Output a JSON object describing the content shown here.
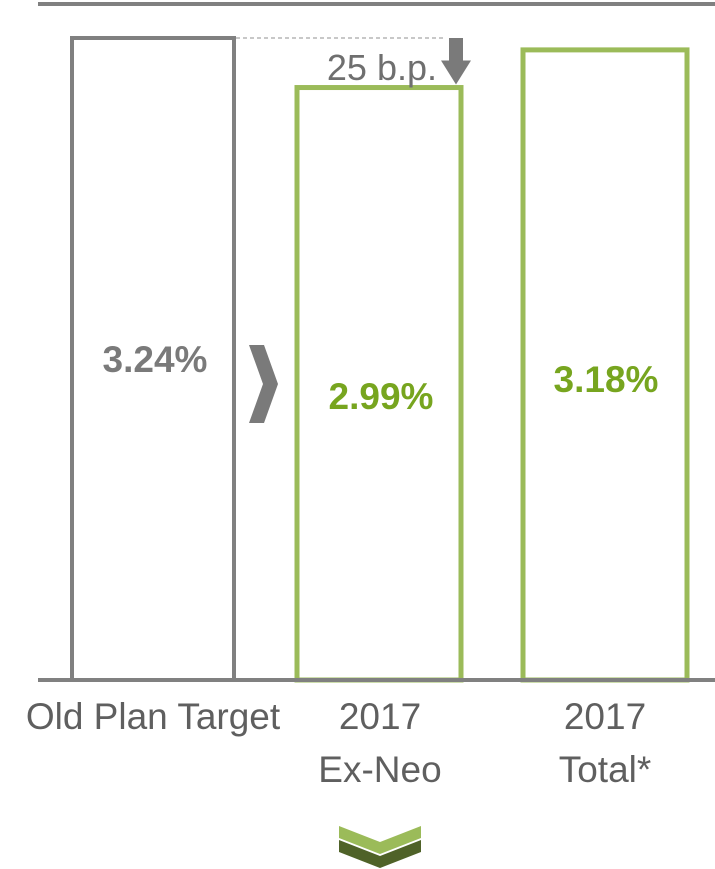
{
  "chart_data": {
    "type": "bar",
    "categories": [
      "Old Plan Target",
      "2017 Ex-Neo",
      "2017 Total*"
    ],
    "category_lines": [
      [
        "Old Plan Target"
      ],
      [
        "2017",
        "Ex-Neo"
      ],
      [
        "2017",
        "Total*"
      ]
    ],
    "values": [
      3.24,
      2.99,
      3.18
    ],
    "value_labels": [
      "3.24%",
      "2.99%",
      "3.18%"
    ],
    "annotation": {
      "text": "25 b.p.",
      "from_category": "Old Plan Target",
      "to_category": "2017 Ex-Neo",
      "difference": 0.25
    },
    "title": "",
    "xlabel": "",
    "ylabel": "",
    "ylim": [
      0,
      3.3
    ],
    "grid": false,
    "legend": "none"
  },
  "colors": {
    "old_plan": "#808080",
    "new": "#9bbb59",
    "value_green": "#77a51f",
    "value_gray": "#7a7a7a",
    "axis": "#808080",
    "chevron_dark": "#4f6228",
    "chevron_light": "#9bbb59"
  },
  "icons": {
    "separator": "chevron-right-icon",
    "footer": "double-chevron-down-icon",
    "delta": "down-arrow-icon"
  }
}
